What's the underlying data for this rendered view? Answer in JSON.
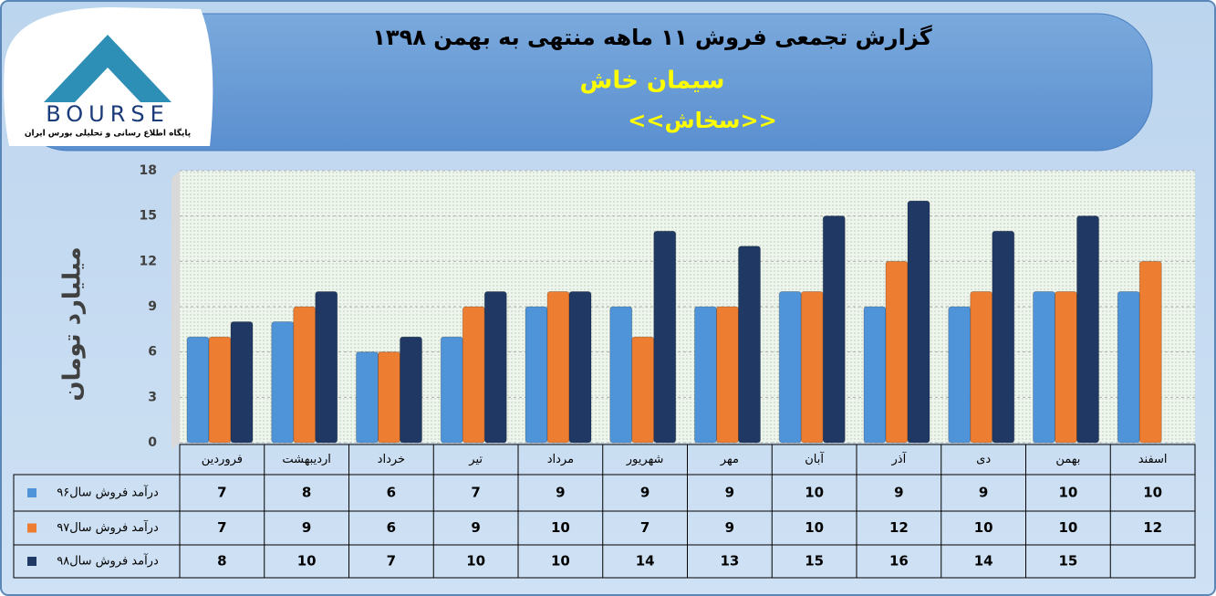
{
  "logo": {
    "brand": "BOURSE",
    "tagline": "پایگاه اطلاع رسانی و تحلیلی بورس ایران"
  },
  "chart_data": {
    "type": "bar",
    "title": "گزارش تجمعی فروش  ۱۱ ماهه منتهی به بهمن ۱۳۹۸",
    "subtitle": "سیمان خاش",
    "symbol": "<<سخاش>>",
    "y_label": "میلیارد تومان",
    "categories": [
      "فروردین",
      "اردیبهشت",
      "خرداد",
      "تیر",
      "مرداد",
      "شهریور",
      "مهر",
      "آبان",
      "آذر",
      "دی",
      "بهمن",
      "اسفند"
    ],
    "series": [
      {
        "name": "درآمد فروش سال۹۶",
        "color": "#4f94d8",
        "values": [
          7,
          8,
          6,
          7,
          9,
          9,
          9,
          10,
          9,
          9,
          10,
          10
        ]
      },
      {
        "name": "درآمد فروش سال۹۷",
        "color": "#ed7d31",
        "values": [
          7,
          9,
          6,
          9,
          10,
          7,
          9,
          10,
          12,
          10,
          10,
          12
        ]
      },
      {
        "name": "درآمد فروش سال۹۸",
        "color": "#1f3864",
        "values": [
          8,
          10,
          7,
          10,
          10,
          14,
          13,
          15,
          16,
          14,
          15,
          null
        ]
      }
    ],
    "ylim": [
      0,
      18
    ],
    "yticks": [
      0,
      3,
      6,
      9,
      12,
      15,
      18
    ],
    "grid": true,
    "data_table": true
  }
}
